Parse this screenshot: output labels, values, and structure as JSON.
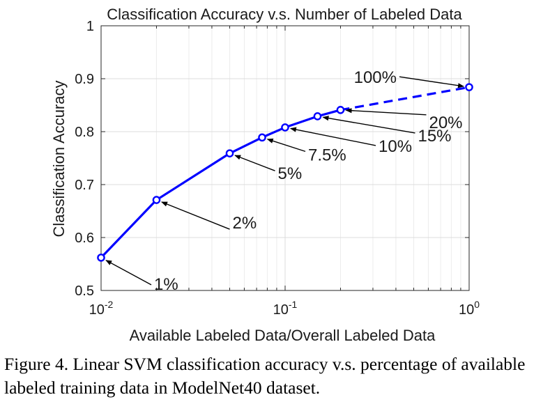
{
  "chart_data": {
    "type": "line",
    "title": "Classification Accuracy v.s. Number of Labeled Data",
    "xlabel": "Available Labeled Data/Overall Labeled Data",
    "ylabel": "Classification Accuracy",
    "x_scale": "log",
    "xlim": [
      0.01,
      1
    ],
    "ylim": [
      0.5,
      1
    ],
    "grid": true,
    "x_ticks": [
      {
        "value": 0.01,
        "base": "10",
        "exp": "-2"
      },
      {
        "value": 0.1,
        "base": "10",
        "exp": "-1"
      },
      {
        "value": 1,
        "base": "10",
        "exp": "0"
      }
    ],
    "y_ticks": [
      "0.5",
      "0.6",
      "0.7",
      "0.8",
      "0.9",
      "1"
    ],
    "series": [
      {
        "color": "#0000ff",
        "x": [
          0.01,
          0.02,
          0.05,
          0.075,
          0.1,
          0.15,
          0.2,
          1.0
        ],
        "y": [
          0.562,
          0.671,
          0.759,
          0.789,
          0.808,
          0.829,
          0.841,
          0.884
        ],
        "dashed_after_index": 6
      }
    ],
    "annotations": [
      "1%",
      "2%",
      "5%",
      "7.5%",
      "10%",
      "15%",
      "20%",
      "100%"
    ]
  },
  "caption": "Figure 4. Linear SVM classification accuracy v.s. percentage of available labeled training data in ModelNet40 dataset."
}
